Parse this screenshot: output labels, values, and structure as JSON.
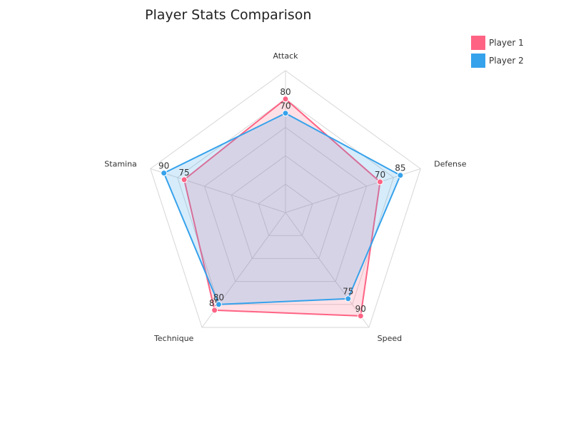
{
  "chart_data": {
    "type": "radar",
    "title": "Player Stats Comparison",
    "axes": [
      "Attack",
      "Defense",
      "Speed",
      "Technique",
      "Stamina"
    ],
    "rlim": [
      0,
      100
    ],
    "grid_levels": 5,
    "legend_position": "top-right",
    "series": [
      {
        "name": "Player 1",
        "values": [
          80,
          70,
          90,
          85,
          75
        ],
        "color": "#ff6384"
      },
      {
        "name": "Player 2",
        "values": [
          70,
          85,
          75,
          80,
          90
        ],
        "color": "#36a2eb"
      }
    ]
  }
}
